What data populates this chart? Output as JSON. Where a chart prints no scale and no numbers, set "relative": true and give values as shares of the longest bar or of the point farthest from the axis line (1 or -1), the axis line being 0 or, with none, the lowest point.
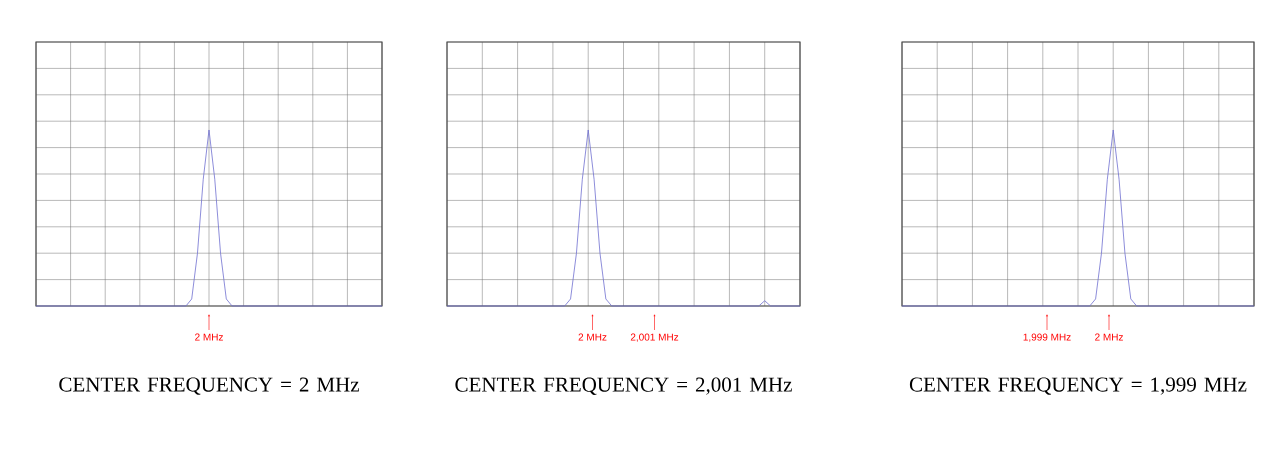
{
  "chart_data": [
    {
      "type": "line",
      "relative": true,
      "grid": true,
      "title": "CENTER FREQUENCY = 2 MHz",
      "categories": [
        null,
        null,
        null,
        null,
        null,
        null,
        null,
        null,
        null,
        null,
        null,
        null,
        null,
        null,
        null,
        null,
        null,
        null,
        null,
        null,
        null,
        null,
        null,
        null,
        null,
        null,
        null,
        null,
        null,
        null,
        null,
        null,
        null,
        null,
        null,
        null,
        null,
        null,
        null,
        null,
        null,
        null,
        null,
        null,
        null,
        null,
        null,
        null,
        null,
        null,
        null,
        null,
        null,
        null,
        null,
        null,
        null,
        null,
        null,
        null,
        null
      ],
      "series": [
        {
          "color": "#7070d0",
          "values": [
            0,
            0,
            0,
            0,
            0,
            0,
            0,
            0,
            0,
            0,
            0,
            0,
            0,
            0,
            0,
            0,
            0,
            0,
            0,
            0,
            0,
            0,
            0,
            0,
            0,
            0,
            0,
            0.04,
            0.3,
            0.72,
            1,
            0.72,
            0.3,
            0.04,
            0,
            0,
            0,
            0,
            0,
            0,
            0,
            0,
            0,
            0,
            0,
            0,
            0,
            0,
            0,
            0,
            0,
            0,
            0,
            0,
            0,
            0,
            0,
            0,
            0,
            0,
            0
          ]
        }
      ],
      "annotations": [
        "2 MHz"
      ]
    },
    {
      "type": "line",
      "relative": true,
      "grid": true,
      "title": "CENTER FREQUENCY = 2,001 MHz",
      "categories": [
        null,
        null,
        null,
        null,
        null,
        null,
        null,
        null,
        null,
        null,
        null,
        null,
        null,
        null,
        null,
        null,
        null,
        null,
        null,
        null,
        null,
        null,
        null,
        null,
        null,
        null,
        null,
        null,
        null,
        null,
        null,
        null,
        null,
        null,
        null,
        null,
        null,
        null,
        null,
        null,
        null,
        null,
        null,
        null,
        null,
        null,
        null,
        null,
        null,
        null,
        null,
        null,
        null,
        null,
        null,
        null,
        null,
        null,
        null,
        null,
        null
      ],
      "series": [
        {
          "color": "#7070d0",
          "values": [
            0,
            0,
            0,
            0,
            0,
            0,
            0,
            0,
            0,
            0,
            0,
            0,
            0,
            0,
            0,
            0,
            0,
            0,
            0,
            0,
            0,
            0.04,
            0.3,
            0.72,
            1,
            0.72,
            0.3,
            0.04,
            0,
            0,
            0,
            0,
            0,
            0,
            0,
            0,
            0,
            0,
            0,
            0,
            0,
            0,
            0,
            0,
            0,
            0,
            0,
            0,
            0,
            0,
            0,
            0,
            0,
            0,
            0.03,
            0,
            0,
            0,
            0,
            0,
            0
          ]
        }
      ],
      "annotations": [
        "2 MHz",
        "2,001 MHz"
      ]
    },
    {
      "type": "line",
      "relative": true,
      "grid": true,
      "title": "CENTER FREQUENCY = 1,999 MHz",
      "categories": [
        null,
        null,
        null,
        null,
        null,
        null,
        null,
        null,
        null,
        null,
        null,
        null,
        null,
        null,
        null,
        null,
        null,
        null,
        null,
        null,
        null,
        null,
        null,
        null,
        null,
        null,
        null,
        null,
        null,
        null,
        null,
        null,
        null,
        null,
        null,
        null,
        null,
        null,
        null,
        null,
        null,
        null,
        null,
        null,
        null,
        null,
        null,
        null,
        null,
        null,
        null,
        null,
        null,
        null,
        null,
        null,
        null,
        null,
        null,
        null,
        null
      ],
      "series": [
        {
          "color": "#7070d0",
          "values": [
            0,
            0,
            0,
            0,
            0,
            0,
            0,
            0,
            0,
            0,
            0,
            0,
            0,
            0,
            0,
            0,
            0,
            0,
            0,
            0,
            0,
            0,
            0,
            0,
            0,
            0,
            0,
            0,
            0,
            0,
            0,
            0,
            0,
            0.04,
            0.3,
            0.72,
            1,
            0.72,
            0.3,
            0.04,
            0,
            0,
            0,
            0,
            0,
            0,
            0,
            0,
            0,
            0,
            0,
            0,
            0,
            0,
            0,
            0,
            0,
            0,
            0,
            0,
            0
          ]
        }
      ],
      "annotations": [
        "1,999 MHz",
        "2 MHz"
      ]
    }
  ]
}
